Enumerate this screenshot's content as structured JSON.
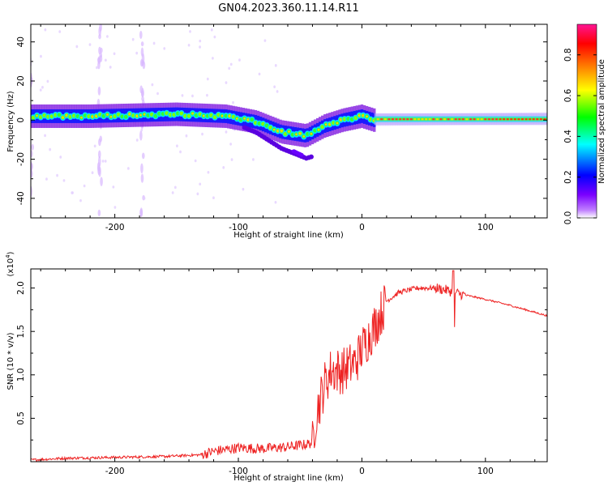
{
  "title": "GN04.2023.360.11.14.R11",
  "chart_data": [
    {
      "type": "heatmap",
      "xlabel": "Height of straight line (km)",
      "ylabel": "Frequency (Hz)",
      "xlim": [
        -268,
        150
      ],
      "ylim": [
        -50,
        49
      ],
      "xticks": [
        "-200",
        "-100",
        "0",
        "100"
      ],
      "yticks": [
        "40",
        "20",
        "0",
        "-20",
        "-40"
      ],
      "colorbar": {
        "label": "Normalized spectral amplitude",
        "range": [
          0,
          1
        ],
        "ticks": [
          "0.0",
          "0.2",
          "0.4",
          "0.6",
          "0.8"
        ],
        "colors": [
          "#ffffff",
          "#7a00ff",
          "#0000ff",
          "#00ffff",
          "#00ff00",
          "#ffff00",
          "#ff7f00",
          "#ff0000",
          "#ff1493"
        ]
      },
      "ridge": [
        {
          "x": -268,
          "y": 2
        },
        {
          "x": -220,
          "y": 2
        },
        {
          "x": -150,
          "y": 3
        },
        {
          "x": -110,
          "y": 2
        },
        {
          "x": -85,
          "y": -1
        },
        {
          "x": -65,
          "y": -6
        },
        {
          "x": -45,
          "y": -8
        },
        {
          "x": -30,
          "y": -3
        },
        {
          "x": -15,
          "y": 0
        },
        {
          "x": 0,
          "y": 2
        },
        {
          "x": 10,
          "y": 0
        },
        {
          "x": 150,
          "y": 1
        }
      ]
    },
    {
      "type": "line",
      "xlabel": "Height of straight line (km)",
      "ylabel": "SNR (10 * v/v)",
      "scale_label": "(x10^4)",
      "xlim": [
        -268,
        150
      ],
      "ylim": [
        0,
        2.22
      ],
      "xticks": [
        "-200",
        "-100",
        "0",
        "100"
      ],
      "yticks": [
        "0.5",
        "1.0",
        "1.5",
        "2.0"
      ],
      "series": [
        {
          "color": "#ee2222",
          "points": [
            [
              -268,
              0.02
            ],
            [
              -240,
              0.04
            ],
            [
              -200,
              0.05
            ],
            [
              -160,
              0.06
            ],
            [
              -130,
              0.08
            ],
            [
              -120,
              0.12
            ],
            [
              -100,
              0.16
            ],
            [
              -80,
              0.15
            ],
            [
              -60,
              0.17
            ],
            [
              -45,
              0.2
            ],
            [
              -40,
              0.22
            ],
            [
              -37,
              0.55
            ],
            [
              -34,
              0.7
            ],
            [
              -30,
              0.9
            ],
            [
              -25,
              1.05
            ],
            [
              -15,
              1.05
            ],
            [
              -5,
              1.15
            ],
            [
              0,
              1.3
            ],
            [
              10,
              1.55
            ],
            [
              20,
              1.85
            ],
            [
              30,
              1.95
            ],
            [
              45,
              2.0
            ],
            [
              60,
              2.0
            ],
            [
              70,
              1.97
            ],
            [
              80,
              1.93
            ],
            [
              100,
              1.87
            ],
            [
              120,
              1.8
            ],
            [
              135,
              1.74
            ],
            [
              150,
              1.68
            ]
          ]
        }
      ]
    }
  ]
}
